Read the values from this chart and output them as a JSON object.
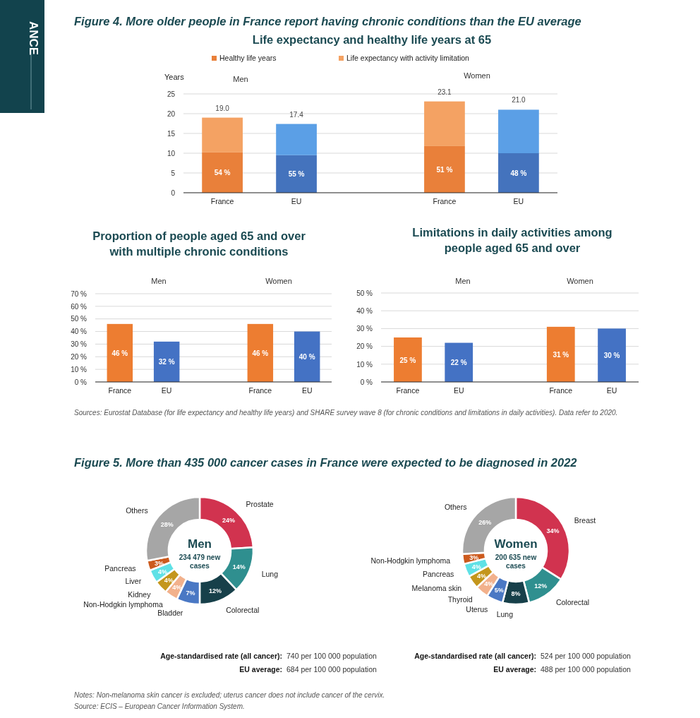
{
  "chart_data": [
    {
      "type": "bar",
      "title": "Life expectancy and healthy life years at 65",
      "ylabel": "Years",
      "stacked": true,
      "legend": "top",
      "grid": "y",
      "categories": [
        "France",
        "EU",
        null,
        "France",
        "EU"
      ],
      "series": [
        {
          "name": "Healthy life years",
          "color": "#e9803a",
          "colors": [
            "#e9803a",
            "#4473bd",
            null,
            "#e9803a",
            "#4473bd"
          ],
          "values": [
            10.2,
            9.5,
            null,
            11.8,
            10.0
          ]
        },
        {
          "name": "Life expectancy with activity limitation",
          "color": "#f4a263",
          "colors": [
            "#f4a263",
            "#5b9fe6",
            null,
            "#f4a263",
            "#5b9fe6"
          ],
          "values": [
            8.8,
            7.9,
            null,
            11.3,
            11.0
          ]
        }
      ],
      "totals": [
        "19.0",
        "17.4",
        null,
        "23.1",
        "21.0"
      ],
      "ylim": [
        0,
        25
      ],
      "yticks": [
        0,
        5,
        10,
        15,
        20,
        25
      ],
      "annotations": [
        "ANCE",
        "Figure 4. More older people in France report having chronic conditions than the EU average",
        "Men",
        "Women",
        "54 %",
        "55 %",
        "51 %",
        "48 %"
      ]
    },
    {
      "type": "bar",
      "title": "Proportion of people aged 65 and over with multiple chronic conditions",
      "grid": "y",
      "categories": [
        "France",
        "EU",
        null,
        "France",
        "EU"
      ],
      "values": [
        46,
        32,
        null,
        46,
        40
      ],
      "colors": [
        "#ed7d31",
        "#4472c4",
        null,
        "#ed7d31",
        "#4472c4"
      ],
      "value_labels": [
        "46 %",
        "32 %",
        null,
        "46 %",
        "40 %"
      ],
      "ylim": [
        0,
        70
      ],
      "yticks": [
        {
          "value": 0,
          "label": "0 %"
        },
        {
          "value": 10,
          "label": "10 %"
        },
        {
          "value": 20,
          "label": "20 %"
        },
        {
          "value": 30,
          "label": "30 %"
        },
        {
          "value": 40,
          "label": "40 %"
        },
        {
          "value": 50,
          "label": "50 %"
        },
        {
          "value": 60,
          "label": "60 %"
        },
        {
          "value": 70,
          "label": "70 %"
        }
      ],
      "annotations": [
        "Men",
        "Women"
      ]
    },
    {
      "type": "bar",
      "title": "Limitations in daily activities among people aged 65 and over",
      "grid": "y",
      "categories": [
        "France",
        "EU",
        null,
        "France",
        "EU"
      ],
      "values": [
        25,
        22,
        null,
        31,
        30
      ],
      "colors": [
        "#ed7d31",
        "#4472c4",
        null,
        "#ed7d31",
        "#4472c4"
      ],
      "value_labels": [
        "25 %",
        "22 %",
        null,
        "31 %",
        "30 %"
      ],
      "ylim": [
        0,
        50
      ],
      "yticks": [
        {
          "value": 0,
          "label": "0 %"
        },
        {
          "value": 10,
          "label": "10 %"
        },
        {
          "value": 20,
          "label": "20 %"
        },
        {
          "value": 30,
          "label": "30 %"
        },
        {
          "value": 40,
          "label": "40 %"
        },
        {
          "value": 50,
          "label": "50 %"
        }
      ],
      "annotations": [
        "Men",
        "Women",
        "Sources: Eurostat Database (for life expectancy and healthy life years) and SHARE survey wave 8 (for chronic conditions and limitations in daily activities). Data refer to 2020."
      ]
    },
    {
      "type": "donut",
      "title": "Men",
      "subtitle": "234 479 new cases",
      "categories": [
        "Prostate",
        "Lung",
        "Colorectal",
        "Bladder",
        "Non-Hodgkin lymphoma",
        "Kidney",
        "Liver",
        "Pancreas",
        "Others"
      ],
      "values": [
        24,
        14,
        12,
        7,
        4,
        4,
        4,
        3,
        28
      ],
      "colors": [
        "#d1334f",
        "#2f8f8f",
        "#17404a",
        "#4a78c4",
        "#f2b18c",
        "#c4961c",
        "#5fe1e6",
        "#cc5a1d",
        "#a6a6a6"
      ],
      "value_labels": [
        "24%",
        "14%",
        "12%",
        "7%",
        "4%",
        "4%",
        "4%",
        "3%",
        "28%"
      ],
      "annotations": [
        "Figure 5. More than 435 000 cancer cases in France were expected to be diagnosed in 2022",
        "Age-standardised rate (all cancer): 740 per 100 000 population",
        "EU average: 684 per 100 000 population"
      ]
    },
    {
      "type": "donut",
      "title": "Women",
      "subtitle": "200 635 new cases",
      "categories": [
        "Breast",
        "Colorectal",
        "Lung",
        "Uterus",
        "Thyroid",
        "Melanoma skin",
        "Pancreas",
        "Non-Hodgkin lymphoma",
        "Others"
      ],
      "values": [
        34,
        12,
        8,
        5,
        4,
        4,
        4,
        3,
        26
      ],
      "colors": [
        "#d1334f",
        "#2f8f8f",
        "#17404a",
        "#4a78c4",
        "#f2b18c",
        "#c4961c",
        "#5fe1e6",
        "#cc5a1d",
        "#a6a6a6"
      ],
      "value_labels": [
        "34%",
        "12%",
        "8%",
        "5%",
        "4%",
        "4%",
        "4%",
        "3%",
        "26%"
      ],
      "annotations": [
        "Age-standardised rate (all cancer): 524 per 100 000 population",
        "EU average: 488 per 100 000 population",
        "Notes: Non-melanoma skin cancer is excluded; uterus cancer does not include cancer of the cervix.",
        "Source: ECIS – European Cancer Information System."
      ]
    }
  ]
}
